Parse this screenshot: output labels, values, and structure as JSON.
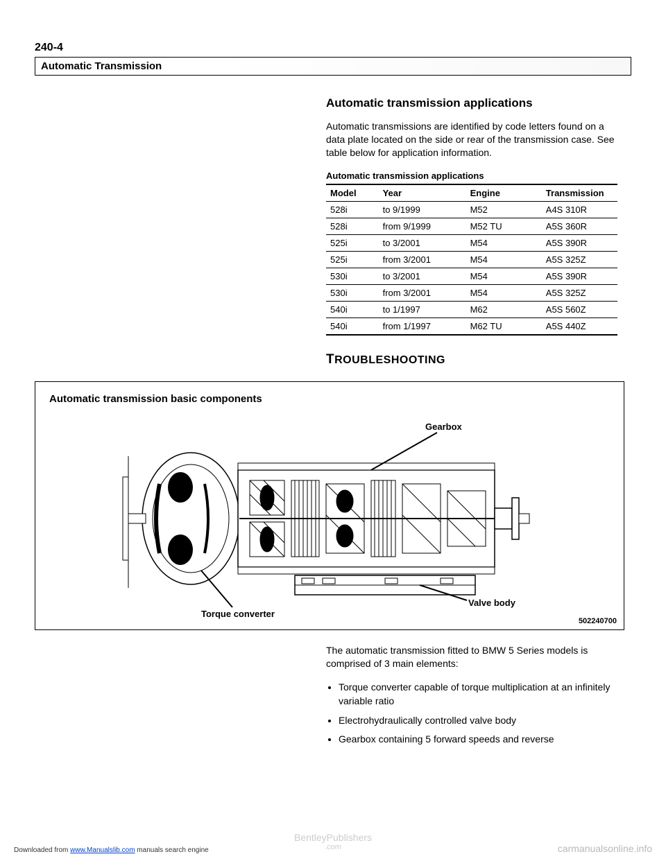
{
  "page_number": "240-4",
  "section_header": "Automatic Transmission",
  "sub_heading": "Automatic transmission applications",
  "intro_paragraph": "Automatic transmissions are identified by code letters found on a data plate located on the side or rear of the transmission case. See table below for application information.",
  "table": {
    "title": "Automatic transmission applications",
    "headers": [
      "Model",
      "Year",
      "Engine",
      "Transmission"
    ],
    "rows": [
      [
        "528i",
        "to 9/1999",
        "M52",
        "A4S 310R"
      ],
      [
        "528i",
        "from 9/1999",
        "M52 TU",
        "A5S 360R"
      ],
      [
        "525i",
        "to 3/2001",
        "M54",
        "A5S 390R"
      ],
      [
        "525i",
        "from 3/2001",
        "M54",
        "A5S 325Z"
      ],
      [
        "530i",
        "to 3/2001",
        "M54",
        "A5S 390R"
      ],
      [
        "530i",
        "from 3/2001",
        "M54",
        "A5S 325Z"
      ],
      [
        "540i",
        "to 1/1997",
        "M62",
        "A5S 560Z"
      ],
      [
        "540i",
        "from 1/1997",
        "M62 TU",
        "A5S 440Z"
      ]
    ],
    "col_widths": [
      "18%",
      "30%",
      "26%",
      "26%"
    ]
  },
  "troubleshooting_heading": {
    "first": "T",
    "rest": "ROUBLESHOOTING"
  },
  "diagram": {
    "title": "Automatic transmission basic components",
    "labels": {
      "gearbox": "Gearbox",
      "torque_converter": "Torque converter",
      "valve_body": "Valve body"
    },
    "id": "502240700",
    "colors": {
      "stroke": "#000000",
      "fill": "#ffffff",
      "hatch": "#000000"
    }
  },
  "after_diagram_paragraph": "The automatic transmission fitted to BMW 5 Series models is comprised of 3 main elements:",
  "bullets": [
    "Torque converter capable of torque multiplication at an infinitely variable ratio",
    "Electrohydraulically controlled valve body",
    "Gearbox containing 5 forward speeds and reverse"
  ],
  "footer": {
    "left_prefix": "Downloaded from ",
    "left_link_text": "www.Manualslib.com",
    "left_suffix": " manuals search engine",
    "center_line1": "BentleyPublishers",
    "center_line2": ".com",
    "right": "carmanualsonline.info"
  }
}
